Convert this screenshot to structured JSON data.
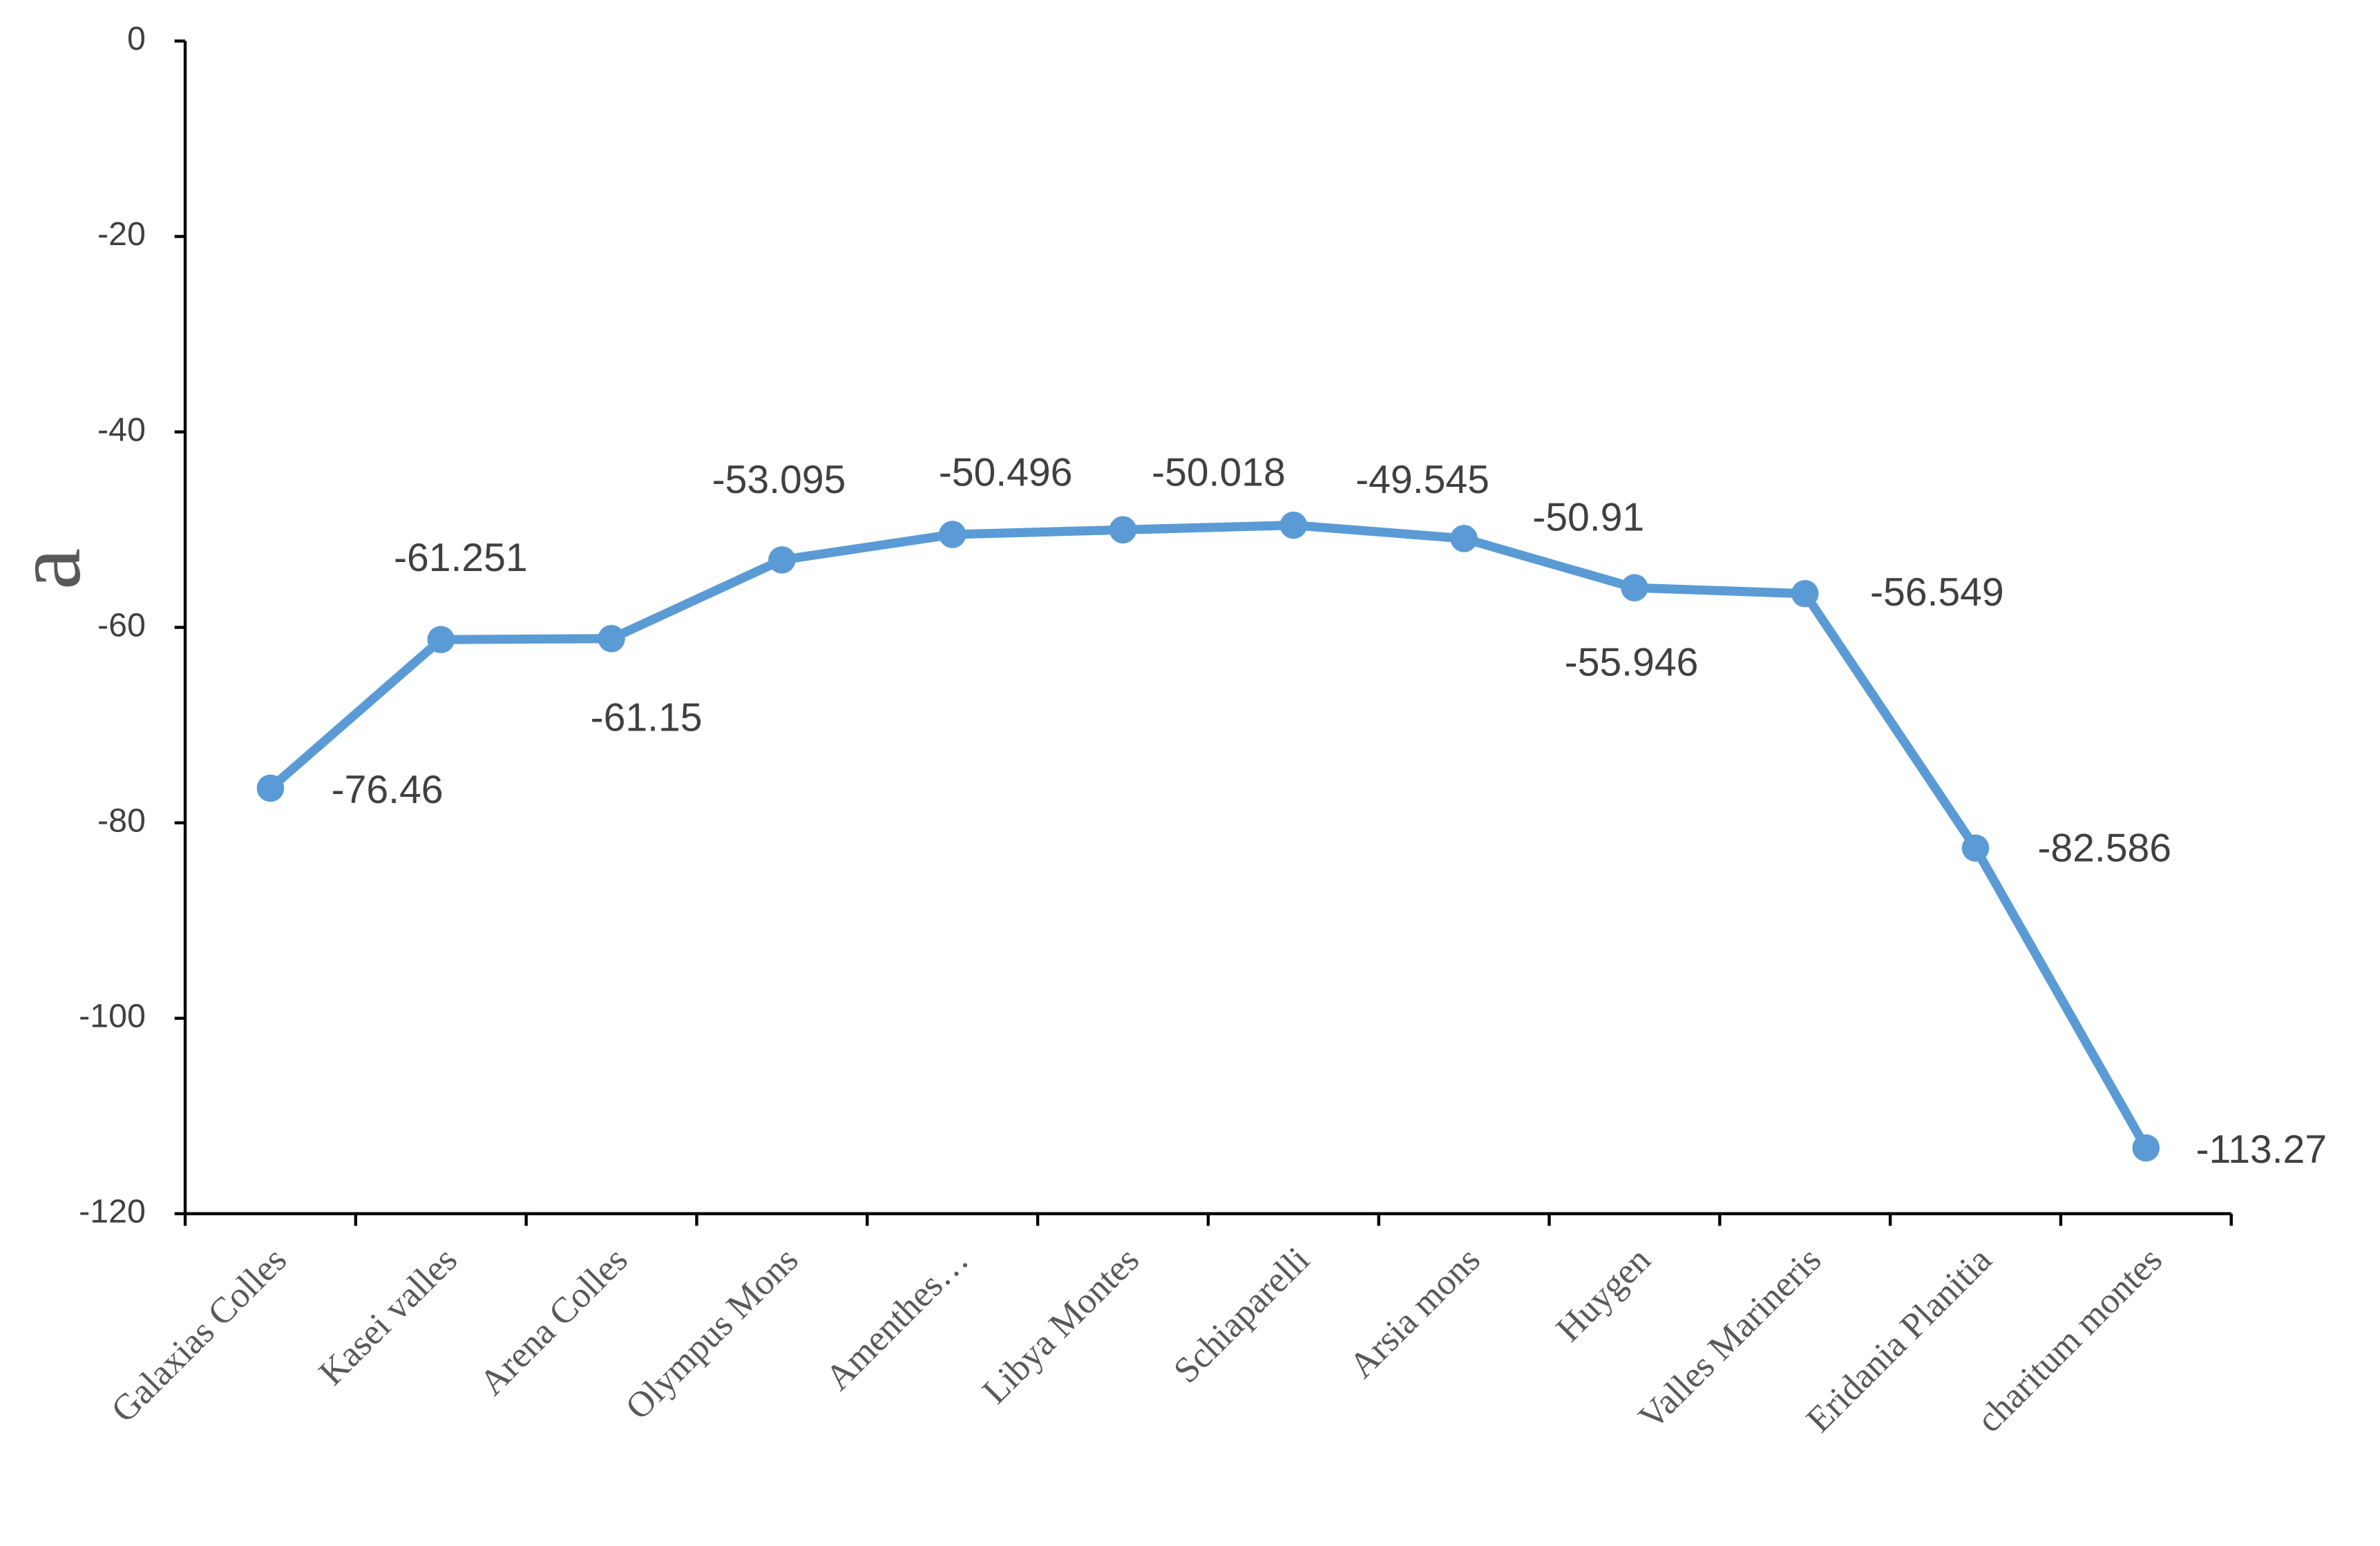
{
  "chart_data": {
    "type": "line",
    "y_label": "a",
    "categories": [
      "Galaxias Colles",
      "Kasei valles",
      "Arena Colles",
      "Olympus Mons",
      "Amenthes…",
      "Libya Montes",
      "Schiaparelli",
      "Arsia mons",
      "Huygen",
      "Valles Marineris",
      "Eridania Planitia",
      "charitum montes"
    ],
    "values": [
      -76.46,
      -61.251,
      -61.15,
      -53.095,
      -50.496,
      -50.018,
      -49.545,
      -50.91,
      -55.946,
      -56.549,
      -82.586,
      -113.27
    ],
    "color": "#5b9bd5",
    "ylim": [
      -120,
      0
    ],
    "yticks": [
      0,
      -20,
      -40,
      -60,
      -80,
      -100,
      -120
    ]
  }
}
